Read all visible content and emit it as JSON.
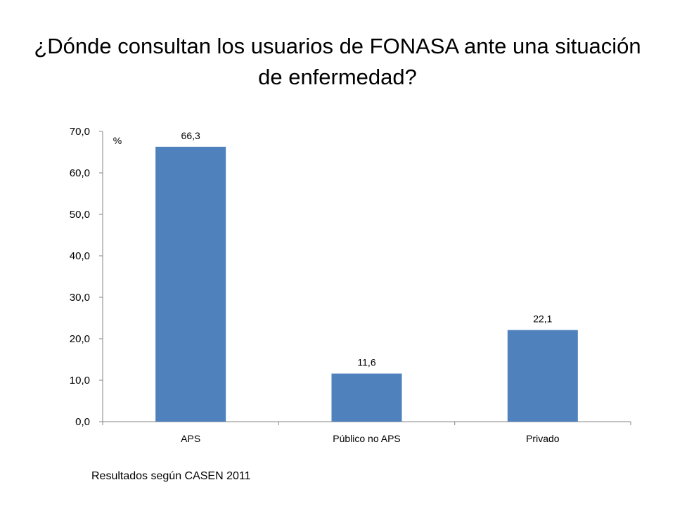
{
  "title": "¿Dónde consultan los usuarios de FONASA ante una situación de enfermedad?",
  "source_note": "Resultados según CASEN 2011",
  "colors": {
    "bar": "#4f81bd",
    "axis": "#868686"
  },
  "chart_data": {
    "type": "bar",
    "title": "¿Dónde consultan los usuarios de FONASA ante una situación de enfermedad?",
    "unit_label": "%",
    "categories": [
      "APS",
      "Público no APS",
      "Privado"
    ],
    "values": [
      66.3,
      11.6,
      22.1
    ],
    "data_labels": [
      "66,3",
      "11,6",
      "22,1"
    ],
    "ylim": [
      0,
      70
    ],
    "yticks": [
      "0,0",
      "10,0",
      "20,0",
      "30,0",
      "40,0",
      "50,0",
      "60,0",
      "70,0"
    ],
    "xlabel": "",
    "ylabel": "",
    "grid": false,
    "legend": "none"
  }
}
